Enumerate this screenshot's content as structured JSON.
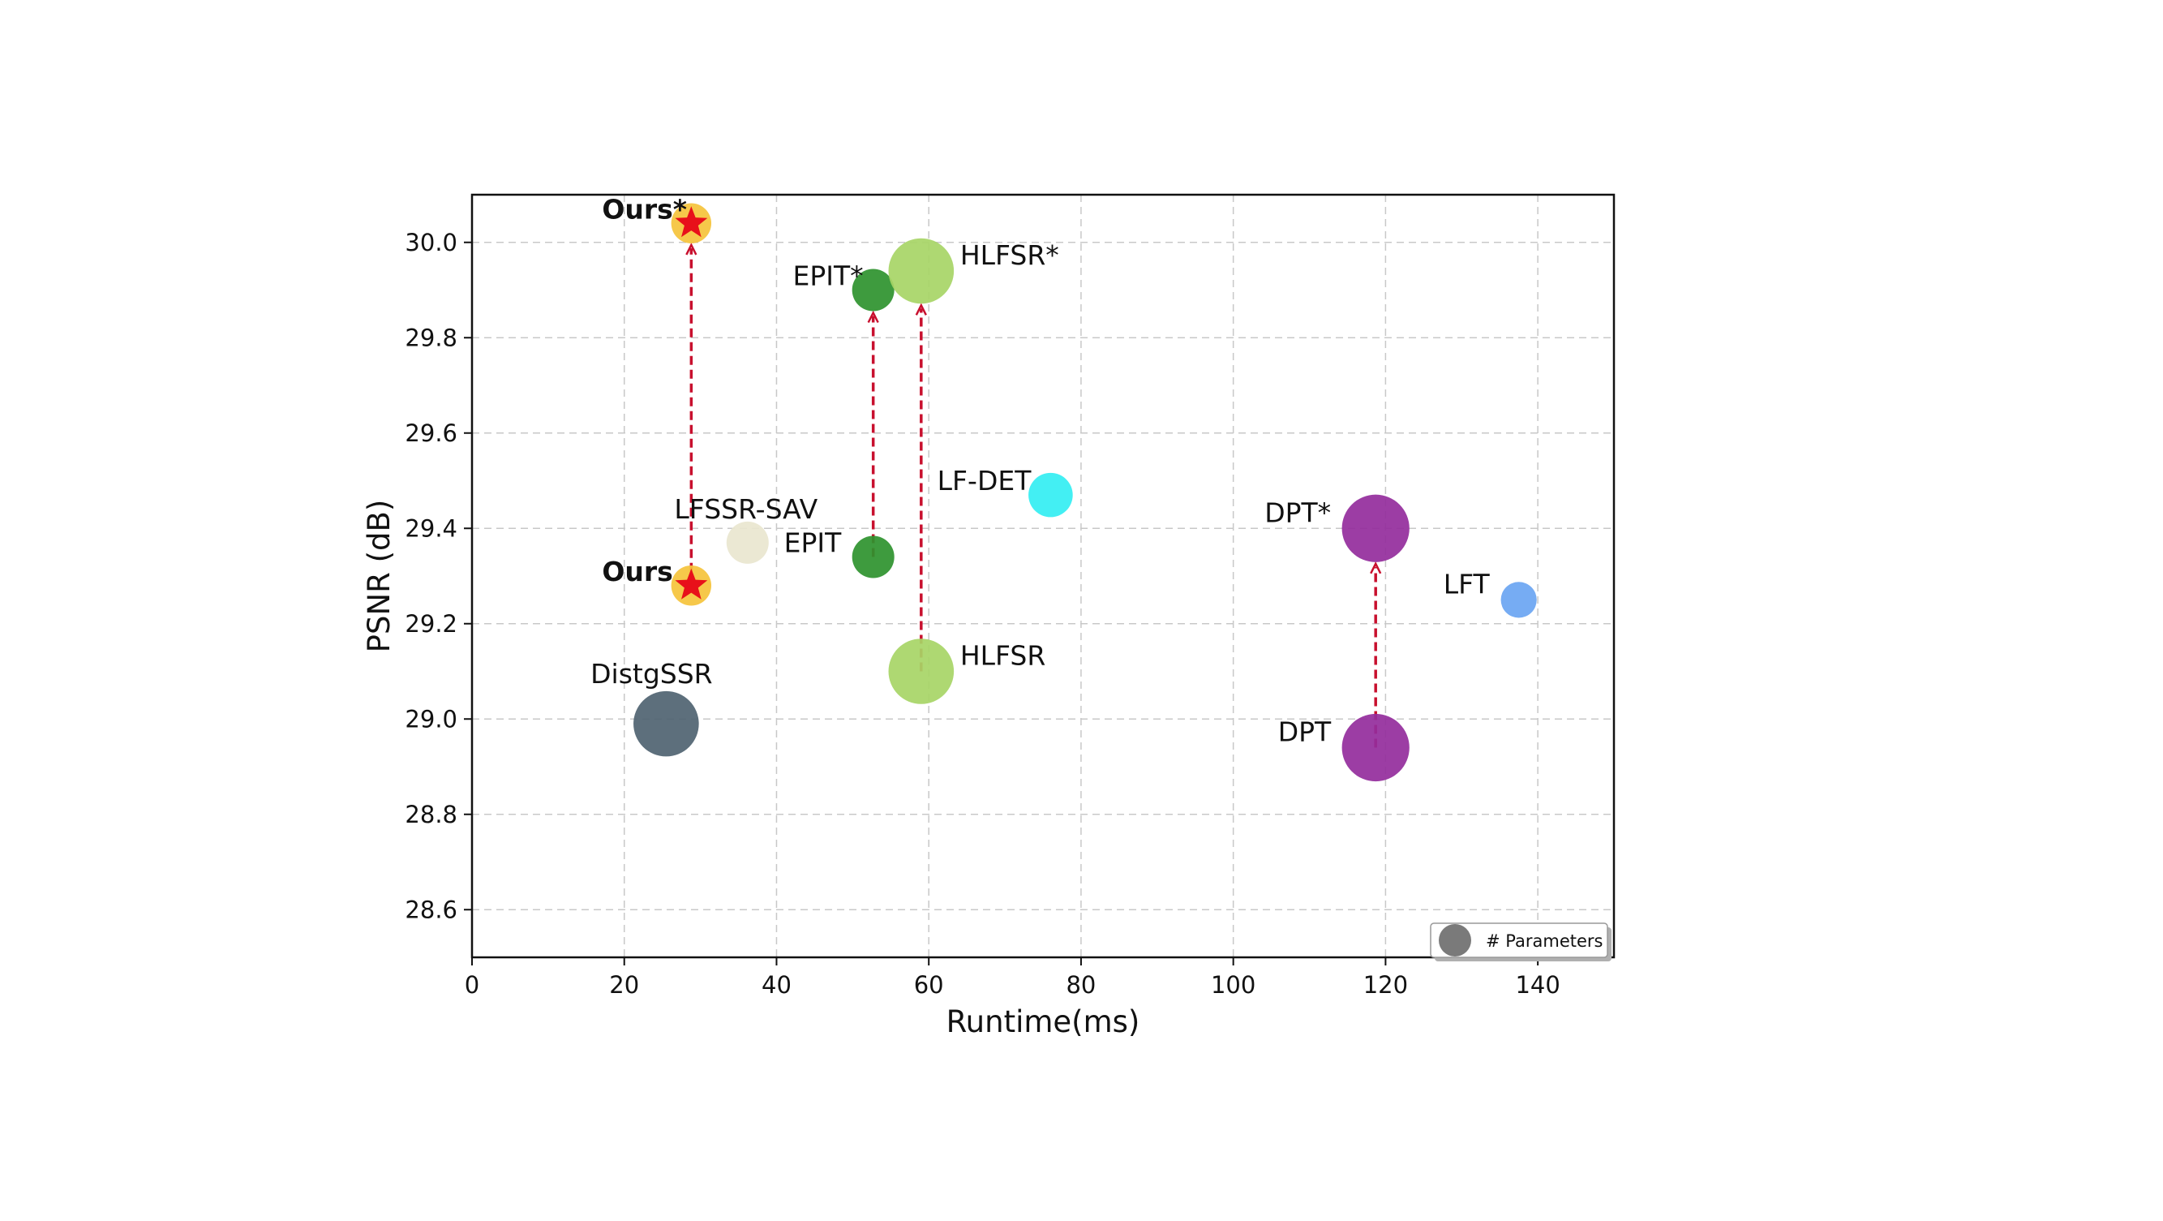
{
  "chart_data": {
    "type": "scatter",
    "xlabel": "Runtime(ms)",
    "ylabel": "PSNR (dB)",
    "xlim": [
      0,
      150
    ],
    "ylim": [
      28.5,
      30.1
    ],
    "x_ticks": [
      "0",
      "20",
      "40",
      "60",
      "80",
      "100",
      "120",
      "140"
    ],
    "y_ticks": [
      "28.6",
      "28.8",
      "29.0",
      "29.2",
      "29.4",
      "29.6",
      "29.8",
      "30.0"
    ],
    "grid": true,
    "legend": {
      "label": "# Parameters",
      "placement": "bottom-right"
    },
    "points": [
      {
        "name": "Ours*",
        "x": 28.8,
        "y": 30.04,
        "size": 0.95,
        "color": "#f5c33b",
        "marker": "star",
        "marker_color": "#e8101a",
        "bold": true
      },
      {
        "name": "Ours",
        "x": 28.8,
        "y": 29.28,
        "size": 0.95,
        "color": "#f5c33b",
        "marker": "star",
        "marker_color": "#e8101a",
        "bold": true
      },
      {
        "name": "EPIT*",
        "x": 52.7,
        "y": 29.9,
        "size": 1.0,
        "color": "#2e922e"
      },
      {
        "name": "EPIT",
        "x": 52.7,
        "y": 29.34,
        "size": 1.0,
        "color": "#2e922e"
      },
      {
        "name": "HLFSR*",
        "x": 59.0,
        "y": 29.94,
        "size": 1.55,
        "color": "#a7d566"
      },
      {
        "name": "HLFSR",
        "x": 59.0,
        "y": 29.1,
        "size": 1.55,
        "color": "#a7d566"
      },
      {
        "name": "LFSSR-SAV",
        "x": 36.2,
        "y": 29.37,
        "size": 1.0,
        "color": "#e9e6cf"
      },
      {
        "name": "LF-DET",
        "x": 76.0,
        "y": 29.47,
        "size": 1.05,
        "color": "#33eef2"
      },
      {
        "name": "DistgSSR",
        "x": 25.5,
        "y": 28.99,
        "size": 1.55,
        "color": "#4f6371"
      },
      {
        "name": "DPT*",
        "x": 118.7,
        "y": 29.4,
        "size": 1.6,
        "color": "#942d9c"
      },
      {
        "name": "DPT",
        "x": 118.7,
        "y": 28.94,
        "size": 1.6,
        "color": "#942d9c"
      },
      {
        "name": "LFT",
        "x": 137.5,
        "y": 29.25,
        "size": 0.85,
        "color": "#6aa5f2"
      }
    ],
    "arrows": [
      {
        "from": "Ours",
        "to": "Ours*",
        "color": "#c8102e"
      },
      {
        "from": "EPIT",
        "to": "EPIT*",
        "color": "#c8102e"
      },
      {
        "from": "HLFSR",
        "to": "HLFSR*",
        "color": "#c8102e"
      },
      {
        "from": "DPT",
        "to": "DPT*",
        "color": "#c8102e"
      }
    ]
  }
}
